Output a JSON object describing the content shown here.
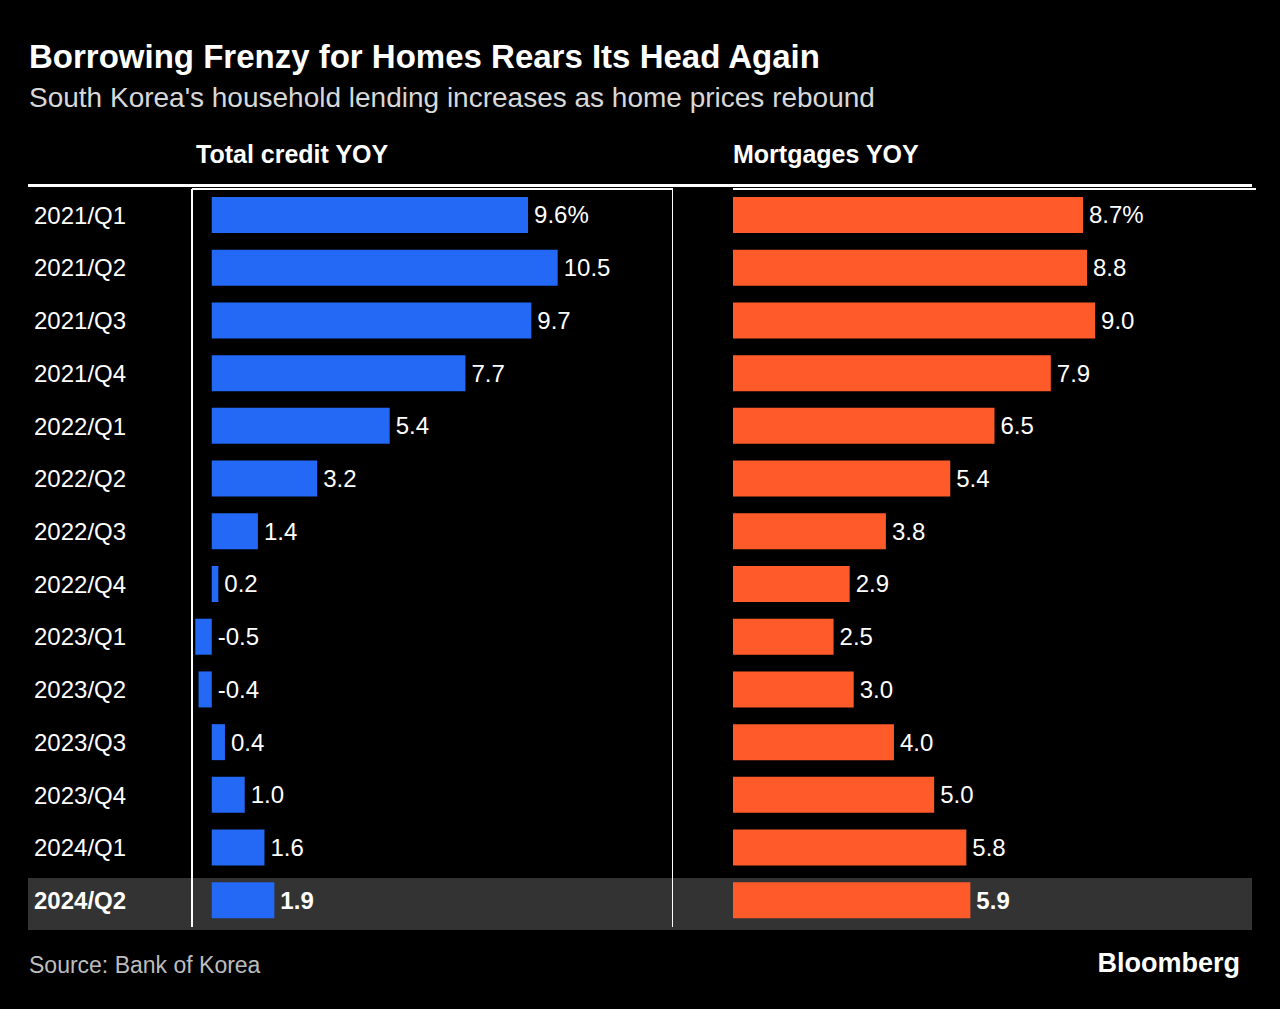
{
  "title": "Borrowing Frenzy for Homes Rears Its Head Again",
  "subtitle": "South Korea's household lending increases as home prices rebound",
  "source": "Source: Bank of Korea",
  "brand": "Bloomberg",
  "chart_data": [
    {
      "type": "bar",
      "orientation": "horizontal",
      "title": "Total credit YOY",
      "categories": [
        "2021/Q1",
        "2021/Q2",
        "2021/Q3",
        "2021/Q4",
        "2022/Q1",
        "2022/Q2",
        "2022/Q3",
        "2022/Q4",
        "2023/Q1",
        "2023/Q2",
        "2023/Q3",
        "2023/Q4",
        "2024/Q1",
        "2024/Q2"
      ],
      "values": [
        9.6,
        10.5,
        9.7,
        7.7,
        5.4,
        3.2,
        1.4,
        0.2,
        -0.5,
        -0.4,
        0.4,
        1.0,
        1.6,
        1.9
      ],
      "value_labels": [
        "9.6%",
        "10.5",
        "9.7",
        "7.7",
        "5.4",
        "3.2",
        "1.4",
        "0.2",
        "-0.5",
        "-0.4",
        "0.4",
        "1.0",
        "1.6",
        "1.9"
      ],
      "color": "#2369f5",
      "xlim": [
        -0.6,
        14
      ],
      "xticks": [
        0
      ],
      "grid": true,
      "data_labels": true,
      "tick_labels": "y"
    },
    {
      "type": "bar",
      "orientation": "horizontal",
      "title": "Mortgages YOY",
      "categories": [
        "2021/Q1",
        "2021/Q2",
        "2021/Q3",
        "2021/Q4",
        "2022/Q1",
        "2022/Q2",
        "2022/Q3",
        "2022/Q4",
        "2023/Q1",
        "2023/Q2",
        "2023/Q3",
        "2023/Q4",
        "2024/Q1",
        "2024/Q2"
      ],
      "values": [
        8.7,
        8.8,
        9.0,
        7.9,
        6.5,
        5.4,
        3.8,
        2.9,
        2.5,
        3.0,
        4.0,
        5.0,
        5.8,
        5.9
      ],
      "value_labels": [
        "8.7%",
        "8.8",
        "9.0",
        "7.9",
        "6.5",
        "5.4",
        "3.8",
        "2.9",
        "2.5",
        "3.0",
        "4.0",
        "5.0",
        "5.8",
        "5.9"
      ],
      "color": "#ff5b2a",
      "xlim": [
        0,
        13
      ],
      "xticks": [
        0
      ],
      "grid": false,
      "data_labels": true,
      "tick_labels": false
    }
  ]
}
